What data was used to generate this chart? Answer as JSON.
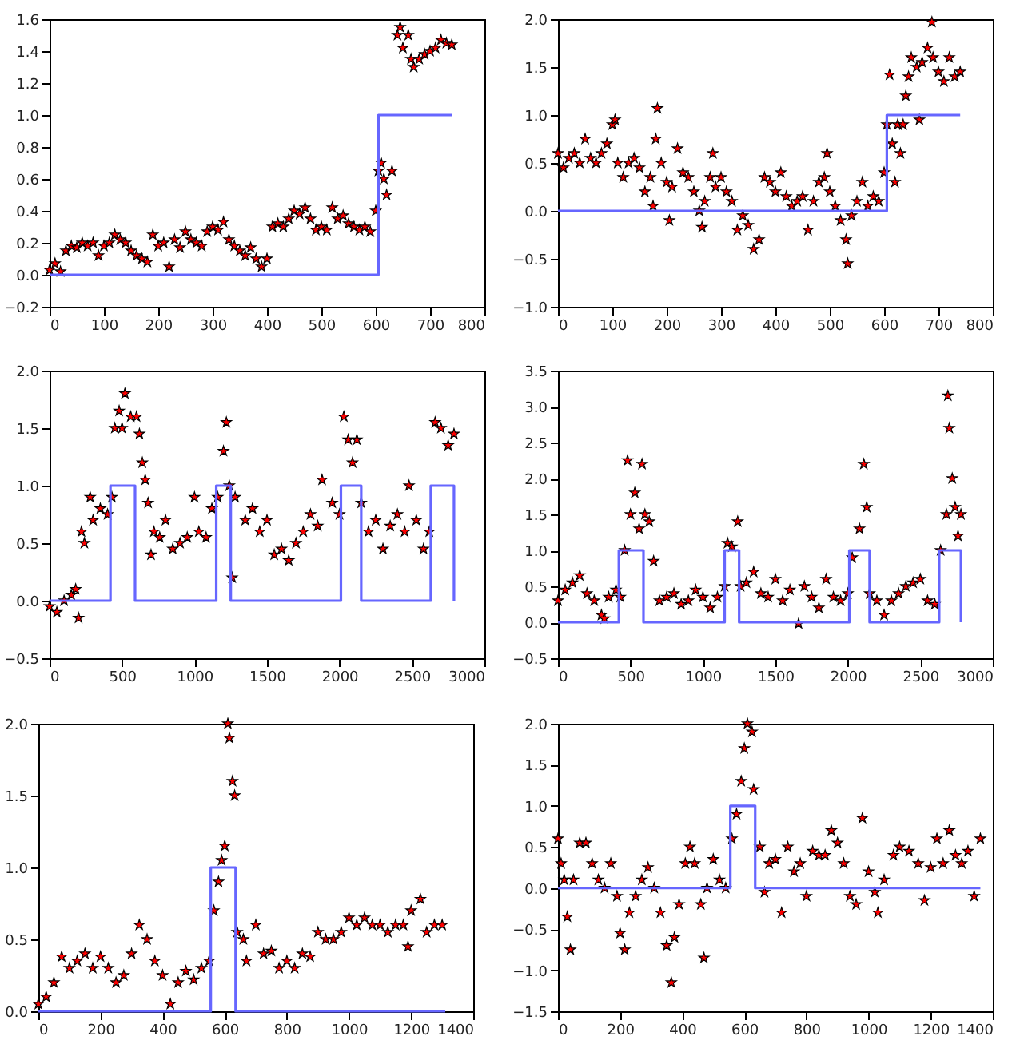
{
  "chart_data": [
    {
      "type": "scatter",
      "xlim": [
        0,
        800
      ],
      "xticks": [
        0,
        100,
        200,
        300,
        400,
        500,
        600,
        700,
        800
      ],
      "ylim": [
        -0.2,
        1.6
      ],
      "yticks": [
        {
          "value": -0.2,
          "label": "−0.2"
        },
        {
          "value": 0,
          "label": "0.0"
        },
        {
          "value": 0.2,
          "label": "0.2"
        },
        {
          "value": 0.4,
          "label": "0.4"
        },
        {
          "value": 0.6,
          "label": "0.6"
        },
        {
          "value": 0.8,
          "label": "0.8"
        },
        {
          "value": 1,
          "label": "1.0"
        },
        {
          "value": 1.2,
          "label": "1.2"
        },
        {
          "value": 1.4,
          "label": "1.4"
        },
        {
          "value": 1.6,
          "label": "1.6"
        }
      ],
      "series": [
        {
          "type": "scatter",
          "marker": "star",
          "color": "#ff0000",
          "x": [
            0,
            10,
            20,
            30,
            40,
            50,
            60,
            70,
            80,
            90,
            100,
            110,
            120,
            130,
            140,
            150,
            160,
            170,
            180,
            190,
            200,
            210,
            220,
            230,
            240,
            250,
            260,
            270,
            280,
            290,
            300,
            310,
            320,
            330,
            340,
            350,
            360,
            370,
            380,
            390,
            400,
            410,
            420,
            430,
            440,
            450,
            460,
            470,
            480,
            490,
            500,
            510,
            520,
            530,
            540,
            550,
            560,
            570,
            580,
            590,
            600,
            605,
            610,
            615,
            620,
            630,
            640,
            645,
            650,
            660,
            665,
            670,
            680,
            690,
            700,
            710,
            720,
            730,
            740
          ],
          "values": [
            0.03,
            0.07,
            0.02,
            0.15,
            0.18,
            0.17,
            0.2,
            0.18,
            0.2,
            0.12,
            0.18,
            0.2,
            0.25,
            0.22,
            0.2,
            0.15,
            0.12,
            0.1,
            0.08,
            0.25,
            0.18,
            0.2,
            0.05,
            0.22,
            0.17,
            0.27,
            0.22,
            0.2,
            0.18,
            0.27,
            0.3,
            0.28,
            0.33,
            0.22,
            0.18,
            0.15,
            0.12,
            0.17,
            0.1,
            0.05,
            0.1,
            0.3,
            0.32,
            0.3,
            0.35,
            0.4,
            0.38,
            0.42,
            0.35,
            0.28,
            0.3,
            0.28,
            0.42,
            0.35,
            0.37,
            0.32,
            0.3,
            0.28,
            0.3,
            0.27,
            0.4,
            0.65,
            0.7,
            0.6,
            0.5,
            0.65,
            1.5,
            1.55,
            1.42,
            1.5,
            1.35,
            1.3,
            1.35,
            1.38,
            1.4,
            1.42,
            1.47,
            1.45,
            1.44
          ]
        },
        {
          "type": "step",
          "color": "#6666ff",
          "x": [
            0,
            605,
            740
          ],
          "values": [
            0,
            1,
            1
          ]
        }
      ]
    },
    {
      "type": "scatter",
      "xlim": [
        0,
        800
      ],
      "xticks": [
        0,
        100,
        200,
        300,
        400,
        500,
        600,
        700,
        800
      ],
      "ylim": [
        -1,
        2
      ],
      "yticks": [
        {
          "value": -1,
          "label": "−1.0"
        },
        {
          "value": -0.5,
          "label": "−0.5"
        },
        {
          "value": 0,
          "label": "0.0"
        },
        {
          "value": 0.5,
          "label": "0.5"
        },
        {
          "value": 1,
          "label": "1.0"
        },
        {
          "value": 1.5,
          "label": "1.5"
        },
        {
          "value": 2,
          "label": "2.0"
        }
      ],
      "series": [
        {
          "type": "scatter",
          "marker": "star",
          "color": "#ff0000",
          "x": [
            0,
            10,
            20,
            30,
            40,
            50,
            60,
            70,
            80,
            90,
            100,
            105,
            110,
            120,
            130,
            140,
            150,
            160,
            170,
            175,
            180,
            183,
            190,
            200,
            205,
            210,
            220,
            230,
            240,
            250,
            260,
            265,
            270,
            280,
            285,
            290,
            300,
            310,
            320,
            330,
            340,
            350,
            360,
            370,
            380,
            390,
            400,
            410,
            420,
            430,
            440,
            450,
            460,
            470,
            480,
            490,
            495,
            500,
            510,
            520,
            530,
            533,
            540,
            550,
            560,
            570,
            580,
            590,
            600,
            605,
            610,
            615,
            620,
            625,
            630,
            635,
            640,
            645,
            650,
            660,
            665,
            670,
            680,
            688,
            690,
            700,
            710,
            720,
            730,
            740
          ],
          "values": [
            0.6,
            0.45,
            0.55,
            0.6,
            0.5,
            0.75,
            0.55,
            0.5,
            0.6,
            0.7,
            0.9,
            0.95,
            0.5,
            0.35,
            0.5,
            0.55,
            0.45,
            0.2,
            0.35,
            0.05,
            0.75,
            1.07,
            0.5,
            0.3,
            -0.1,
            0.25,
            0.65,
            0.4,
            0.35,
            0.2,
            0.0,
            -0.17,
            0.1,
            0.35,
            0.6,
            0.25,
            0.35,
            0.2,
            0.1,
            -0.2,
            -0.05,
            -0.15,
            -0.4,
            -0.3,
            0.35,
            0.3,
            0.2,
            0.4,
            0.15,
            0.05,
            0.1,
            0.15,
            -0.2,
            0.1,
            0.3,
            0.35,
            0.6,
            0.2,
            0.05,
            -0.1,
            -0.3,
            -0.55,
            -0.05,
            0.1,
            0.3,
            0.05,
            0.15,
            0.1,
            0.4,
            0.9,
            1.42,
            0.7,
            0.3,
            0.9,
            0.6,
            0.9,
            1.2,
            1.4,
            1.6,
            1.5,
            0.95,
            1.55,
            1.7,
            1.97,
            1.6,
            1.45,
            1.35,
            1.6,
            1.4,
            1.45
          ]
        },
        {
          "type": "step",
          "color": "#6666ff",
          "x": [
            0,
            605,
            740
          ],
          "values": [
            0,
            1,
            1
          ]
        }
      ]
    },
    {
      "type": "scatter",
      "xlim": [
        0,
        3000
      ],
      "xticks": [
        0,
        500,
        1000,
        1500,
        2000,
        2500,
        3000
      ],
      "ylim": [
        -0.5,
        2
      ],
      "yticks": [
        {
          "value": -0.5,
          "label": "−0.5"
        },
        {
          "value": 0,
          "label": "0.0"
        },
        {
          "value": 0.5,
          "label": "0.5"
        },
        {
          "value": 1,
          "label": "1.0"
        },
        {
          "value": 1.5,
          "label": "1.5"
        },
        {
          "value": 2,
          "label": "2.0"
        }
      ],
      "series": [
        {
          "type": "scatter",
          "marker": "star",
          "color": "#ff0000",
          "x": [
            0,
            50,
            100,
            150,
            180,
            200,
            220,
            240,
            280,
            300,
            350,
            400,
            430,
            450,
            480,
            500,
            520,
            560,
            600,
            620,
            640,
            660,
            680,
            700,
            720,
            760,
            800,
            850,
            900,
            950,
            1000,
            1030,
            1080,
            1120,
            1160,
            1200,
            1220,
            1240,
            1260,
            1280,
            1350,
            1400,
            1450,
            1500,
            1550,
            1600,
            1650,
            1700,
            1750,
            1800,
            1850,
            1880,
            1950,
            2000,
            2030,
            2060,
            2090,
            2120,
            2150,
            2200,
            2250,
            2300,
            2350,
            2400,
            2450,
            2480,
            2530,
            2580,
            2620,
            2660,
            2700,
            2750,
            2790
          ],
          "values": [
            -0.05,
            -0.1,
            0.0,
            0.05,
            0.1,
            -0.15,
            0.6,
            0.5,
            0.9,
            0.7,
            0.8,
            0.75,
            0.9,
            1.5,
            1.65,
            1.5,
            1.8,
            1.6,
            1.6,
            1.45,
            1.2,
            1.05,
            0.85,
            0.4,
            0.6,
            0.55,
            0.7,
            0.45,
            0.5,
            0.55,
            0.9,
            0.6,
            0.55,
            0.8,
            0.9,
            1.3,
            1.55,
            1.0,
            0.2,
            0.9,
            0.7,
            0.8,
            0.6,
            0.7,
            0.4,
            0.45,
            0.35,
            0.5,
            0.6,
            0.75,
            0.65,
            1.05,
            0.85,
            0.75,
            1.6,
            1.4,
            1.2,
            1.4,
            0.85,
            0.6,
            0.7,
            0.45,
            0.65,
            0.75,
            0.6,
            1.0,
            0.7,
            0.45,
            0.6,
            1.55,
            1.5,
            1.35,
            1.45
          ]
        },
        {
          "type": "step",
          "color": "#6666ff",
          "x": [
            0,
            420,
            590,
            1150,
            1250,
            2010,
            2150,
            2630,
            2790
          ],
          "values": [
            0,
            1,
            0,
            1,
            0,
            1,
            0,
            1,
            0
          ]
        }
      ]
    },
    {
      "type": "scatter",
      "xlim": [
        0,
        3000
      ],
      "xticks": [
        0,
        500,
        1000,
        1500,
        2000,
        2500,
        3000
      ],
      "ylim": [
        -0.5,
        3.5
      ],
      "yticks": [
        {
          "value": -0.5,
          "label": "−0.5"
        },
        {
          "value": 0,
          "label": "0.0"
        },
        {
          "value": 0.5,
          "label": "0.5"
        },
        {
          "value": 1,
          "label": "1.0"
        },
        {
          "value": 1.5,
          "label": "1.5"
        },
        {
          "value": 2,
          "label": "2.0"
        },
        {
          "value": 2.5,
          "label": "2.5"
        },
        {
          "value": 3,
          "label": "3.0"
        },
        {
          "value": 3.5,
          "label": "3.5"
        }
      ],
      "series": [
        {
          "type": "scatter",
          "marker": "star",
          "color": "#ff0000",
          "x": [
            0,
            50,
            100,
            150,
            200,
            250,
            300,
            320,
            350,
            400,
            430,
            460,
            480,
            500,
            530,
            560,
            580,
            600,
            630,
            660,
            700,
            750,
            800,
            850,
            900,
            950,
            1000,
            1050,
            1100,
            1150,
            1170,
            1200,
            1240,
            1260,
            1300,
            1350,
            1400,
            1450,
            1500,
            1550,
            1600,
            1660,
            1700,
            1750,
            1800,
            1850,
            1900,
            1950,
            2000,
            2030,
            2080,
            2110,
            2130,
            2150,
            2200,
            2250,
            2300,
            2350,
            2400,
            2450,
            2500,
            2550,
            2600,
            2640,
            2680,
            2690,
            2700,
            2720,
            2740,
            2760,
            2780
          ],
          "values": [
            0.3,
            0.45,
            0.55,
            0.65,
            0.4,
            0.3,
            0.1,
            0.05,
            0.35,
            0.45,
            0.35,
            1.0,
            2.25,
            1.5,
            1.8,
            1.3,
            2.2,
            1.5,
            1.4,
            0.85,
            0.3,
            0.35,
            0.4,
            0.25,
            0.3,
            0.45,
            0.35,
            0.2,
            0.35,
            0.5,
            1.1,
            1.05,
            1.4,
            0.5,
            0.55,
            0.7,
            0.4,
            0.35,
            0.6,
            0.3,
            0.45,
            -0.02,
            0.5,
            0.35,
            0.2,
            0.6,
            0.35,
            0.3,
            0.4,
            0.9,
            1.3,
            2.2,
            1.6,
            0.4,
            0.3,
            0.1,
            0.3,
            0.4,
            0.5,
            0.55,
            0.6,
            0.3,
            0.25,
            1.0,
            1.5,
            3.15,
            2.7,
            2.0,
            1.6,
            1.2,
            1.5
          ]
        },
        {
          "type": "step",
          "color": "#6666ff",
          "x": [
            0,
            420,
            590,
            1150,
            1250,
            2010,
            2150,
            2630,
            2780
          ],
          "values": [
            0,
            1,
            0,
            1,
            0,
            1,
            0,
            1,
            0
          ]
        }
      ]
    },
    {
      "type": "scatter",
      "xlim": [
        0,
        1400
      ],
      "xticks": [
        0,
        200,
        400,
        600,
        800,
        1000,
        1200,
        1400
      ],
      "ylim": [
        0,
        2
      ],
      "yticks": [
        {
          "value": 0,
          "label": "0.0"
        },
        {
          "value": 0.5,
          "label": "0.5"
        },
        {
          "value": 1,
          "label": "1.0"
        },
        {
          "value": 1.5,
          "label": "1.5"
        },
        {
          "value": 2,
          "label": "2.0"
        }
      ],
      "series": [
        {
          "type": "scatter",
          "marker": "star",
          "color": "#ff0000",
          "x": [
            0,
            25,
            50,
            75,
            100,
            125,
            150,
            175,
            200,
            225,
            250,
            275,
            300,
            325,
            350,
            375,
            400,
            425,
            450,
            475,
            500,
            525,
            550,
            565,
            580,
            590,
            600,
            610,
            615,
            625,
            632,
            640,
            660,
            670,
            700,
            725,
            750,
            775,
            800,
            825,
            850,
            875,
            900,
            925,
            950,
            975,
            1000,
            1025,
            1050,
            1075,
            1100,
            1125,
            1150,
            1175,
            1190,
            1200,
            1230,
            1250,
            1275,
            1300
          ],
          "values": [
            0.05,
            0.1,
            0.2,
            0.38,
            0.3,
            0.35,
            0.4,
            0.3,
            0.38,
            0.3,
            0.2,
            0.25,
            0.4,
            0.6,
            0.5,
            0.35,
            0.25,
            0.05,
            0.2,
            0.28,
            0.22,
            0.3,
            0.35,
            0.7,
            0.9,
            1.05,
            1.15,
            2.0,
            1.9,
            1.6,
            1.5,
            0.55,
            0.5,
            0.35,
            0.6,
            0.4,
            0.42,
            0.3,
            0.35,
            0.3,
            0.4,
            0.38,
            0.55,
            0.5,
            0.5,
            0.55,
            0.65,
            0.6,
            0.65,
            0.6,
            0.6,
            0.55,
            0.6,
            0.6,
            0.45,
            0.7,
            0.78,
            0.55,
            0.6,
            0.6
          ]
        },
        {
          "type": "step",
          "color": "#6666ff",
          "x": [
            0,
            555,
            635,
            1310
          ],
          "values": [
            0,
            1,
            0,
            0
          ]
        }
      ]
    },
    {
      "type": "scatter",
      "xlim": [
        0,
        1400
      ],
      "xticks": [
        0,
        200,
        400,
        600,
        800,
        1000,
        1200,
        1400
      ],
      "ylim": [
        -1.5,
        2
      ],
      "yticks": [
        {
          "value": -1.5,
          "label": "−1.5"
        },
        {
          "value": -1,
          "label": "−1.0"
        },
        {
          "value": -0.5,
          "label": "−0.5"
        },
        {
          "value": 0,
          "label": "0.0"
        },
        {
          "value": 0.5,
          "label": "0.5"
        },
        {
          "value": 1,
          "label": "1.0"
        },
        {
          "value": 1.5,
          "label": "1.5"
        },
        {
          "value": 2,
          "label": "2.0"
        }
      ],
      "series": [
        {
          "type": "scatter",
          "marker": "star",
          "color": "#ff0000",
          "x": [
            0,
            10,
            20,
            30,
            40,
            50,
            70,
            90,
            110,
            130,
            150,
            170,
            190,
            200,
            215,
            230,
            250,
            270,
            290,
            310,
            330,
            350,
            365,
            375,
            390,
            410,
            425,
            440,
            460,
            470,
            480,
            500,
            520,
            540,
            560,
            575,
            590,
            600,
            610,
            625,
            630,
            650,
            665,
            680,
            700,
            720,
            740,
            760,
            780,
            800,
            820,
            840,
            860,
            880,
            900,
            920,
            940,
            960,
            980,
            1000,
            1020,
            1030,
            1050,
            1080,
            1100,
            1130,
            1160,
            1180,
            1200,
            1220,
            1240,
            1260,
            1280,
            1300,
            1320,
            1340,
            1360
          ],
          "values": [
            0.6,
            0.3,
            0.1,
            -0.35,
            -0.75,
            0.1,
            0.55,
            0.55,
            0.3,
            0.1,
            0.0,
            0.3,
            -0.1,
            -0.55,
            -0.75,
            -0.3,
            -0.1,
            0.1,
            0.25,
            0.0,
            -0.3,
            -0.7,
            -1.15,
            -0.6,
            -0.2,
            0.3,
            0.5,
            0.3,
            -0.2,
            -0.85,
            0.0,
            0.35,
            0.1,
            0.0,
            0.6,
            0.9,
            1.3,
            1.7,
            2.0,
            1.9,
            1.2,
            0.5,
            -0.05,
            0.3,
            0.35,
            -0.3,
            0.5,
            0.2,
            0.3,
            -0.1,
            0.45,
            0.4,
            0.4,
            0.7,
            0.55,
            0.3,
            -0.1,
            -0.2,
            0.85,
            0.2,
            -0.05,
            -0.3,
            0.1,
            0.4,
            0.5,
            0.45,
            0.3,
            -0.15,
            0.25,
            0.6,
            0.3,
            0.7,
            0.4,
            0.3,
            0.45,
            -0.1,
            0.6
          ]
        },
        {
          "type": "step",
          "color": "#6666ff",
          "x": [
            0,
            555,
            635,
            1360
          ],
          "values": [
            0,
            1,
            0,
            0
          ]
        }
      ]
    }
  ]
}
